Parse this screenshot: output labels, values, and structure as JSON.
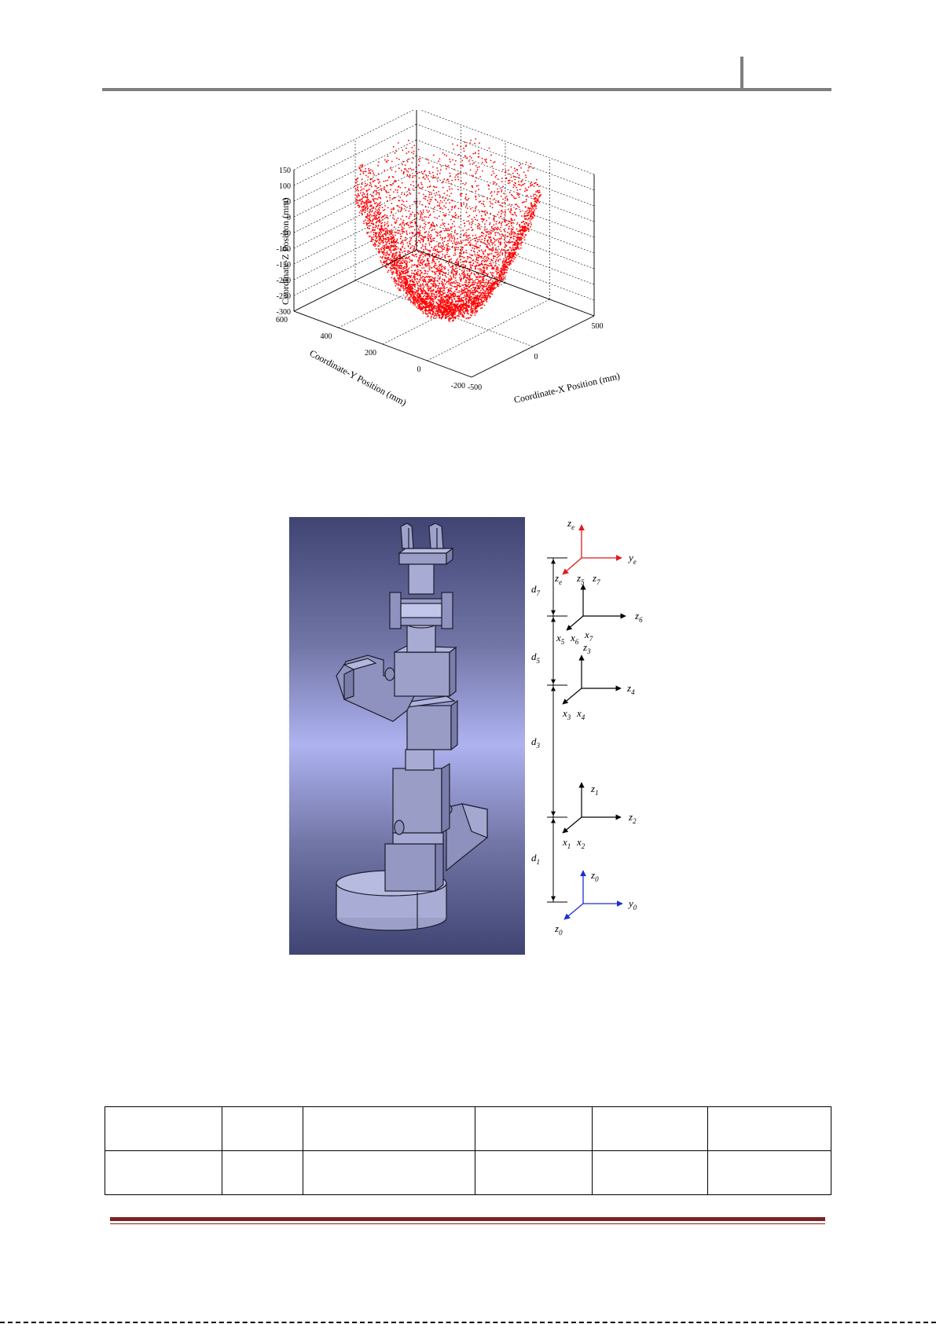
{
  "figure1": {
    "chart_data": {
      "type": "scatter",
      "projection": "3d",
      "grid": true,
      "point_color": "#ff0000",
      "xlabel": "Coordinate-X Position (mm)",
      "ylabel": "Coordinate-Y Position (mm)",
      "zlabel": "Coordinate-Z Position (mm)",
      "xticks": [
        "-500",
        "0",
        "500"
      ],
      "yticks": [
        "-200",
        "0",
        "200",
        "400",
        "600"
      ],
      "zticks": [
        "150",
        "100",
        "50",
        "0",
        "-50",
        "-100",
        "-150",
        "-200",
        "-250",
        "-300"
      ],
      "xlim": [
        -500,
        500
      ],
      "ylim": [
        -200,
        600
      ],
      "zlim": [
        -300,
        150
      ]
    }
  },
  "figure2": {
    "labels": {
      "ze": "z",
      "ze_sub": "e",
      "ye": "y",
      "ye_sub": "e",
      "xe": "z",
      "xe_sub": "e",
      "d7": "d",
      "d7_sub": "7",
      "z5": "z",
      "z5_sub": "5",
      "z7": "z",
      "z7_sub": "7",
      "z6": "z",
      "z6_sub": "6",
      "x5": "x",
      "x5_sub": "5",
      "x6": "x",
      "x6_sub": "6",
      "x7": "x",
      "x7_sub": "7",
      "z3": "z",
      "z3_sub": "3",
      "d5": "d",
      "d5_sub": "5",
      "z4": "z",
      "z4_sub": "4",
      "x3": "x",
      "x3_sub": "3",
      "x4": "x",
      "x4_sub": "4",
      "d3": "d",
      "d3_sub": "3",
      "z1": "z",
      "z1_sub": "1",
      "z2": "z",
      "z2_sub": "2",
      "x1": "x",
      "x1_sub": "1",
      "x2": "x",
      "x2_sub": "2",
      "d1": "d",
      "d1_sub": "1",
      "z0": "z",
      "z0_sub": "0",
      "y0": "y",
      "y0_sub": "0",
      "x0": "z",
      "x0_sub": "0"
    },
    "colors": {
      "end_frame": "#e01b1b",
      "base_frame": "#1a2fd0",
      "joint_frame": "#000000"
    }
  },
  "table": {
    "rows": 2,
    "columns": 6
  }
}
